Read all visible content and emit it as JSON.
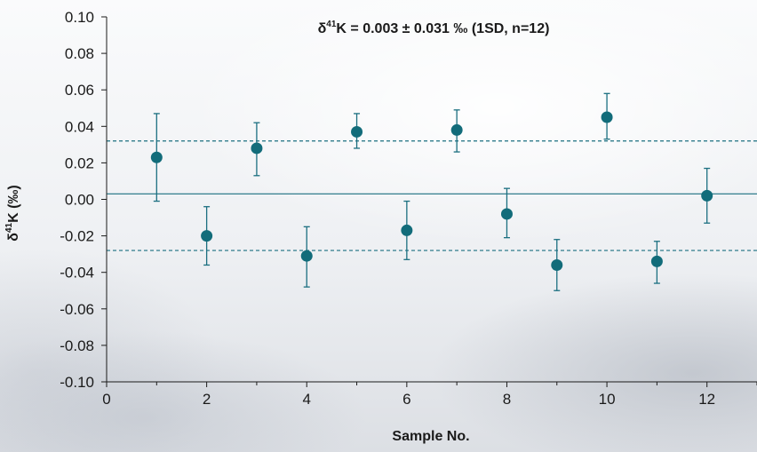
{
  "chart_data": {
    "type": "scatter",
    "title_prefix": "δ",
    "title_superscript": "41",
    "title_suffix": "K = 0.003 ± 0.031 ‰ (1SD, n=12)",
    "xlabel": "Sample No.",
    "ylabel_prefix": "δ",
    "ylabel_superscript": "41",
    "ylabel_suffix": "K (‰)",
    "xlim": [
      0,
      13
    ],
    "ylim": [
      -0.1,
      0.1
    ],
    "xticks": [
      "0",
      "2",
      "4",
      "6",
      "8",
      "10",
      "12"
    ],
    "yticks": [
      "0.10",
      "0.08",
      "0.06",
      "0.04",
      "0.02",
      "0.00",
      "-0.02",
      "-0.04",
      "-0.06",
      "-0.08",
      "-0.10"
    ],
    "x": [
      1,
      2,
      3,
      4,
      5,
      6,
      7,
      8,
      9,
      10,
      11,
      12
    ],
    "y": [
      0.023,
      -0.02,
      0.028,
      -0.031,
      0.037,
      -0.017,
      0.038,
      -0.008,
      -0.036,
      0.045,
      -0.034,
      0.002
    ],
    "yerr_lower": [
      0.024,
      0.016,
      0.015,
      0.017,
      0.009,
      0.016,
      0.012,
      0.013,
      0.014,
      0.012,
      0.012,
      0.015
    ],
    "yerr_upper": [
      0.024,
      0.016,
      0.014,
      0.016,
      0.01,
      0.016,
      0.011,
      0.014,
      0.014,
      0.013,
      0.011,
      0.015
    ],
    "mean": 0.003,
    "sd_upper": 0.032,
    "sd_lower": -0.028,
    "grid": false,
    "colors": {
      "marker": "#126c7a",
      "line": "#1b6f80",
      "axis": "#1a1a1a"
    }
  }
}
